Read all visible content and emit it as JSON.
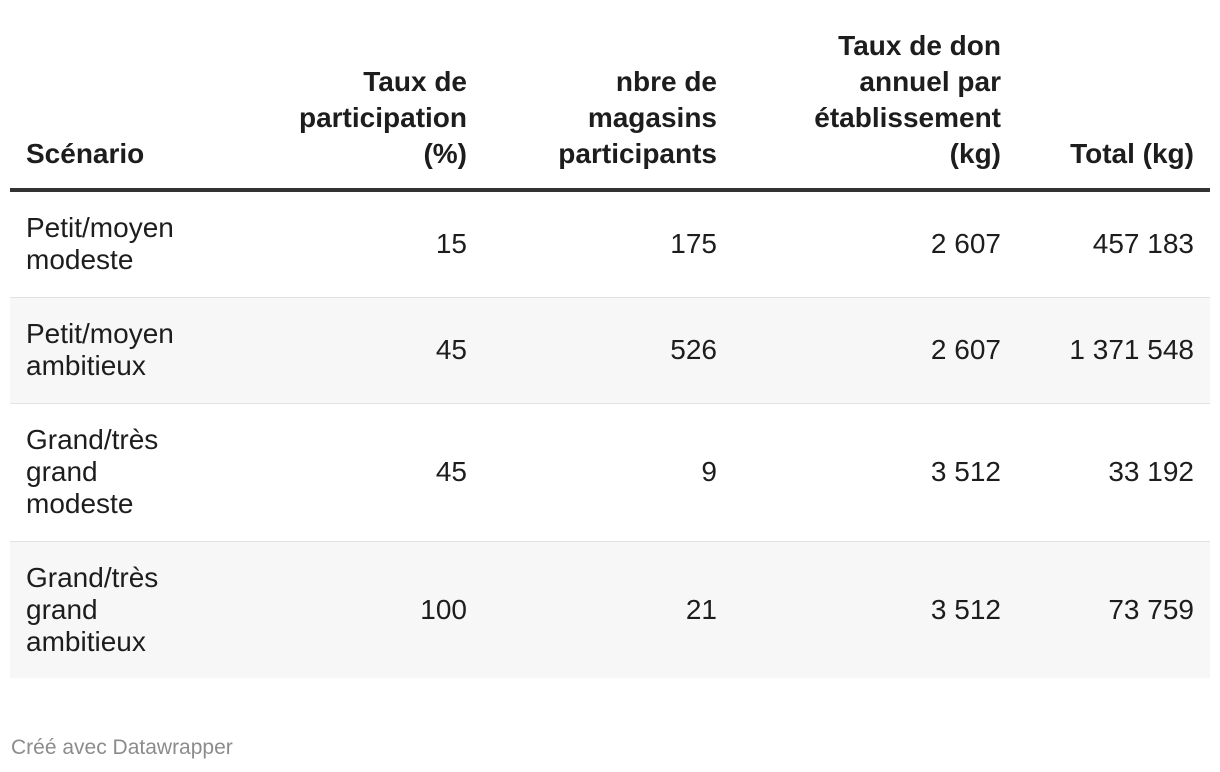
{
  "chart_data": {
    "type": "table",
    "columns": [
      "Scénario",
      "Taux de participation (%)",
      "nbre de magasins participants",
      "Taux de don annuel par établissement (kg)",
      "Total (kg)"
    ],
    "header": {
      "scenario": "Scénario",
      "taux": "Taux de\nparticipation\n(%)",
      "nbre": "nbre de\nmagasins\nparticipants",
      "don": "Taux de don\nannuel par\nétablissement\n(kg)",
      "total": "Total (kg)"
    },
    "rows": [
      {
        "scenario": "Petit/moyen\nmodeste",
        "taux": "15",
        "nbre": "175",
        "don": "2 607",
        "total": "457 183"
      },
      {
        "scenario": "Petit/moyen\nambitieux",
        "taux": "45",
        "nbre": "526",
        "don": "2 607",
        "total": "1 371 548"
      },
      {
        "scenario": "Grand/très\ngrand\nmodeste",
        "taux": "45",
        "nbre": "9",
        "don": "3 512",
        "total": "33 192"
      },
      {
        "scenario": "Grand/très\ngrand\nambitieux",
        "taux": "100",
        "nbre": "21",
        "don": "3 512",
        "total": "73 759"
      }
    ]
  },
  "footer": {
    "credit": "Créé avec Datawrapper"
  }
}
